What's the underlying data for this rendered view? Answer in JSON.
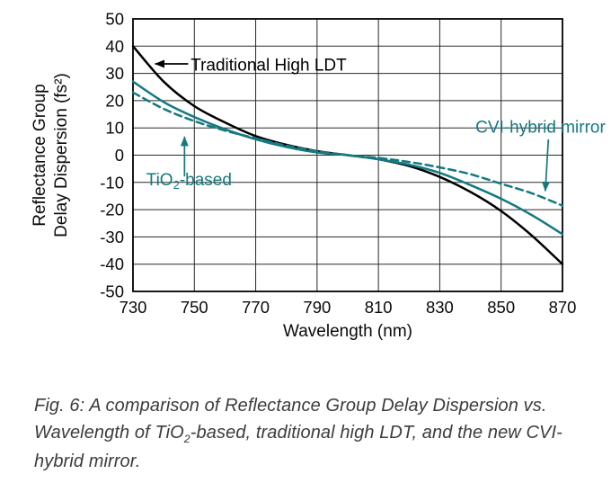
{
  "figure": {
    "caption_parts": [
      {
        "text": "Fig. 6: A comparison of Reflectance Group Delay Dispersion vs. Wavelength of TiO"
      },
      {
        "text": "2",
        "sub": true
      },
      {
        "text": "-based, traditional high LDT, and the new CVI-hybrid mirror."
      }
    ]
  },
  "chart_data": {
    "type": "line",
    "title": "",
    "xlabel": "Wavelength (nm)",
    "ylabel": "Reflectance Group Delay Dispersion (fs²)",
    "ylabel_lines": [
      "Reflectance Group",
      "Delay Dispersion (fs²)"
    ],
    "xlim": [
      730,
      870
    ],
    "ylim": [
      -50,
      50
    ],
    "xticks": [
      730,
      750,
      770,
      790,
      810,
      830,
      850,
      870
    ],
    "yticks": [
      50,
      40,
      30,
      20,
      10,
      0,
      -10,
      -20,
      -30,
      -40,
      -50
    ],
    "grid": true,
    "grid_color": "#2a2a2a",
    "axis_color": "#000000",
    "accent_color": "#147980",
    "x": [
      730,
      740,
      750,
      760,
      770,
      780,
      790,
      800,
      810,
      820,
      830,
      840,
      850,
      860,
      870
    ],
    "series": [
      {
        "name": "Traditional High LDT",
        "color": "#000000",
        "style": "solid",
        "values": [
          40,
          27,
          18,
          12,
          7,
          3.8,
          1.5,
          0,
          -1.5,
          -4,
          -8,
          -13.5,
          -20.5,
          -29.5,
          -40
        ]
      },
      {
        "name": "TiO2-based",
        "color": "#147980",
        "style": "solid",
        "values": [
          27,
          19.5,
          14,
          9.5,
          5.8,
          3,
          1,
          0,
          -1.5,
          -3.5,
          -6.5,
          -11,
          -16,
          -22,
          -29
        ]
      },
      {
        "name": "CVI-hybrid mirror",
        "color": "#147980",
        "style": "dashed",
        "values": [
          23,
          17,
          12.5,
          9,
          6.2,
          3.5,
          1.5,
          0,
          -1,
          -2.5,
          -4.5,
          -7,
          -10.5,
          -14,
          -18.5
        ]
      }
    ],
    "annotations": [
      {
        "id": "traditional-high-ldt",
        "color": "#000000",
        "anchor": "start",
        "parts": [
          {
            "text": "Traditional High LDT"
          }
        ],
        "text_pos": [
          748.8,
          31.0
        ],
        "arrow": [
          [
            748.0,
            33.5
          ],
          [
            737.2,
            33.5
          ]
        ],
        "marker": "arrow-black"
      },
      {
        "id": "tio2-based",
        "color": "#147980",
        "anchor": "start",
        "parts": [
          {
            "text": "TiO"
          },
          {
            "text": "2",
            "sub": true
          },
          {
            "text": "-based"
          }
        ],
        "text_pos": [
          734.3,
          -11.0
        ],
        "arrow": [
          [
            746.8,
            -7.8
          ],
          [
            746.8,
            6.8
          ]
        ],
        "marker": "arrow-teal"
      },
      {
        "id": "cvi-hybrid-mirror",
        "color": "#147980",
        "anchor": "end",
        "parts": [
          {
            "text": "CVI-hybrid mirror"
          }
        ],
        "text_pos": [
          884.0,
          8.2
        ],
        "arrow": [
          [
            865.4,
            5.8
          ],
          [
            864.4,
            -13.2
          ]
        ],
        "marker": "arrow-teal"
      }
    ]
  }
}
